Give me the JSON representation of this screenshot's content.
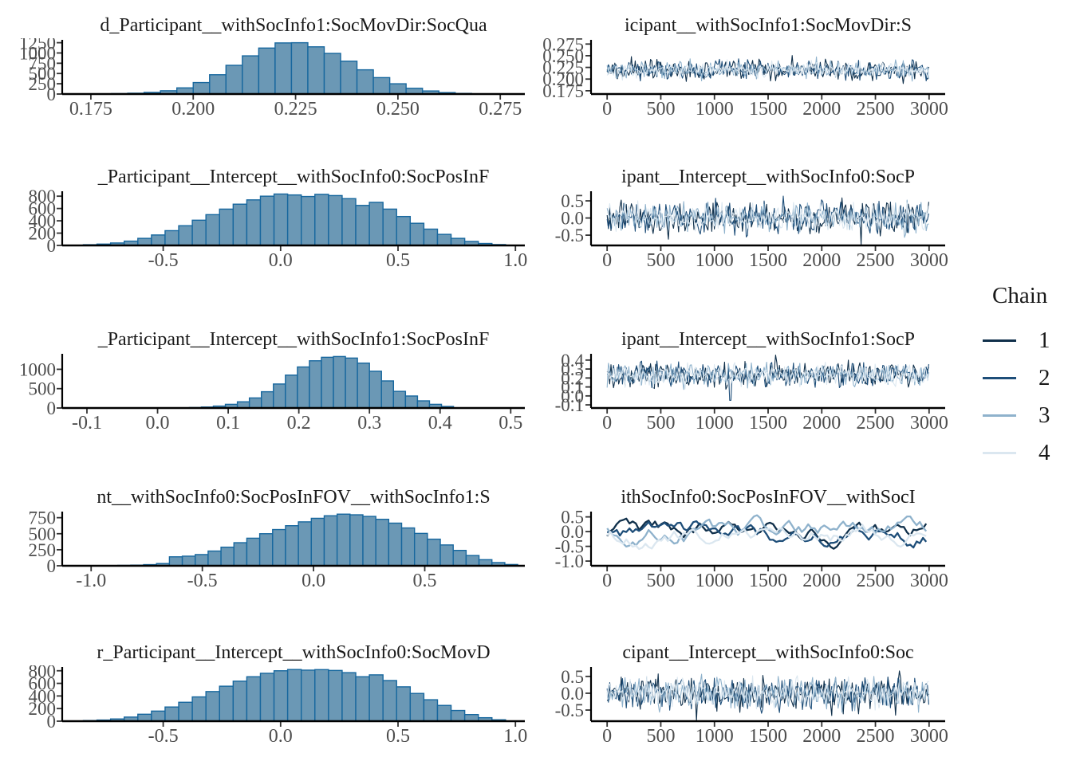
{
  "page": {
    "background": "#ffffff"
  },
  "style_colors": {
    "hist_fill": "#6b98b5",
    "hist_stroke": "#17679e",
    "axis": "#000000",
    "tick": "#333333",
    "tick_label": "#4d4d4d",
    "title": "#1a1a1a"
  },
  "legend": {
    "title": "Chain",
    "entries": [
      {
        "label": "1",
        "color": "#10304b"
      },
      {
        "label": "2",
        "color": "#1e4e79"
      },
      {
        "label": "3",
        "color": "#8fb2cc"
      },
      {
        "label": "4",
        "color": "#dbe7f0"
      }
    ]
  },
  "chart_data": {
    "type": "mcmc-diagnostics",
    "description": "Posterior histograms (left) and 4-chain trace plots (right) for 5 parameters; 3000 iterations per chain",
    "iterations": 3000,
    "plots": [
      {
        "hist": {
          "type": "bar",
          "title": "d_Participant__withSocInfo1:SocMovDir:SocQua",
          "x_start": 0.18,
          "bin_width": 0.004,
          "heights": [
            10,
            20,
            40,
            80,
            150,
            280,
            470,
            700,
            930,
            1120,
            1245,
            1250,
            1150,
            990,
            800,
            590,
            400,
            250,
            140,
            75,
            35,
            15
          ],
          "xlim": [
            0.168,
            0.281
          ],
          "ylim": [
            0,
            1320
          ],
          "x_ticks": {
            "values": [
              0.175,
              0.2,
              0.225,
              0.25,
              0.275
            ],
            "labels": [
              "0.175",
              "0.200",
              "0.225",
              "0.250",
              "0.275"
            ]
          },
          "y_ticks": {
            "values": [
              0,
              250,
              500,
              750,
              1000,
              1250
            ],
            "labels": [
              "0",
              "250",
              "500",
              "750",
              "1000",
              "1250"
            ]
          }
        },
        "trace": {
          "type": "line",
          "title": "icipant__withSocInfo1:SocMovDir:S",
          "band_mean": 0.2195,
          "band_half": 0.0235,
          "style": "fast",
          "seed": 11,
          "xlim": [
            -150,
            3150
          ],
          "ylim": [
            0.168,
            0.284
          ],
          "x_ticks": {
            "values": [
              0,
              500,
              1000,
              1500,
              2000,
              2500,
              3000
            ],
            "labels": [
              "0",
              "500",
              "1000",
              "1500",
              "2000",
              "2500",
              "3000"
            ]
          },
          "y_ticks": {
            "values": [
              0.175,
              0.2,
              0.225,
              0.25,
              0.275
            ],
            "labels": [
              "0.175",
              "0.200",
              "0.225",
              "0.250",
              "0.275"
            ]
          }
        }
      },
      {
        "hist": {
          "type": "bar",
          "title": "_Participant__Intercept__withSocInfo0:SocPosInF",
          "x_start": -0.84,
          "bin_width": 0.058,
          "heights": [
            12,
            22,
            40,
            70,
            115,
            170,
            240,
            320,
            410,
            500,
            590,
            670,
            740,
            800,
            835,
            820,
            795,
            830,
            810,
            760,
            650,
            700,
            590,
            470,
            360,
            265,
            180,
            115,
            65,
            32,
            14
          ],
          "xlim": [
            -0.93,
            1.04
          ],
          "ylim": [
            0,
            880
          ],
          "x_ticks": {
            "values": [
              -0.5,
              0,
              0.5,
              1.0
            ],
            "labels": [
              "-0.5",
              "0.0",
              "0.5",
              "1.0"
            ]
          },
          "y_ticks": {
            "values": [
              0,
              200,
              400,
              600,
              800
            ],
            "labels": [
              "0",
              "200",
              "400",
              "600",
              "800"
            ]
          }
        },
        "trace": {
          "type": "line",
          "title": "ipant__Intercept__withSocInfo0:SocP",
          "band_mean": 0.0,
          "band_half": 0.55,
          "style": "fast",
          "seed": 22,
          "xlim": [
            -150,
            3150
          ],
          "ylim": [
            -0.8,
            0.78
          ],
          "x_ticks": {
            "values": [
              0,
              500,
              1000,
              1500,
              2000,
              2500,
              3000
            ],
            "labels": [
              "0",
              "500",
              "1000",
              "1500",
              "2000",
              "2500",
              "3000"
            ]
          },
          "y_ticks": {
            "values": [
              -0.5,
              0,
              0.5
            ],
            "labels": [
              "-0.5",
              "0.0",
              "0.5"
            ]
          }
        }
      },
      {
        "hist": {
          "type": "bar",
          "title": "_Participant__Intercept__withSocInfo1:SocPosInF",
          "x_start": 0.045,
          "bin_width": 0.017,
          "heights": [
            12,
            25,
            50,
            95,
            160,
            260,
            420,
            620,
            850,
            1060,
            1220,
            1310,
            1330,
            1290,
            1160,
            950,
            700,
            430,
            310,
            185,
            95,
            40
          ],
          "xlim": [
            -0.135,
            0.52
          ],
          "ylim": [
            0,
            1400
          ],
          "x_ticks": {
            "values": [
              -0.1,
              0,
              0.1,
              0.2,
              0.3,
              0.4,
              0.5
            ],
            "labels": [
              "-0.1",
              "0.0",
              "0.1",
              "0.2",
              "0.3",
              "0.4",
              "0.5"
            ]
          },
          "y_ticks": {
            "values": [
              0,
              500,
              1000
            ],
            "labels": [
              "0",
              "500",
              "1000"
            ]
          }
        },
        "trace": {
          "type": "line",
          "title": "ipant__Intercept__withSocInfo1:SocP",
          "band_mean": 0.235,
          "band_half": 0.155,
          "style": "fast",
          "seed": 33,
          "spike": {
            "chain": 2,
            "iter": 1150,
            "value": -0.05
          },
          "xlim": [
            -150,
            3150
          ],
          "ylim": [
            -0.135,
            0.47
          ],
          "x_ticks": {
            "values": [
              0,
              500,
              1000,
              1500,
              2000,
              2500,
              3000
            ],
            "labels": [
              "0",
              "500",
              "1000",
              "1500",
              "2000",
              "2500",
              "3000"
            ]
          },
          "y_ticks": {
            "values": [
              -0.1,
              0,
              0.1,
              0.2,
              0.3,
              0.4
            ],
            "labels": [
              "-0.1",
              "0.0",
              "0.1",
              "0.2",
              "0.3",
              "0.4"
            ]
          }
        }
      },
      {
        "hist": {
          "type": "bar",
          "title": "nt__withSocInfo0:SocPosInFOV__withSocInfo1:S",
          "x_start": -0.88,
          "bin_width": 0.058,
          "heights": [
            6,
            10,
            18,
            35,
            140,
            150,
            175,
            230,
            290,
            360,
            430,
            500,
            565,
            625,
            685,
            740,
            780,
            805,
            795,
            770,
            725,
            665,
            590,
            505,
            415,
            325,
            240,
            160,
            95,
            50,
            20
          ],
          "xlim": [
            -1.13,
            0.95
          ],
          "ylim": [
            0,
            845
          ],
          "x_ticks": {
            "values": [
              -1.0,
              -0.5,
              0,
              0.5
            ],
            "labels": [
              "-1.0",
              "-0.5",
              "0.0",
              "0.5"
            ]
          },
          "y_ticks": {
            "values": [
              0,
              250,
              500,
              750
            ],
            "labels": [
              "0",
              "250",
              "500",
              "750"
            ]
          }
        },
        "trace": {
          "type": "line",
          "title": "ithSocInfo0:SocPosInFOV__withSocI",
          "band_mean": -0.07,
          "band_half": 0.5,
          "style": "slow",
          "seed": 44,
          "xlim": [
            -150,
            3150
          ],
          "ylim": [
            -1.16,
            0.68
          ],
          "x_ticks": {
            "values": [
              0,
              500,
              1000,
              1500,
              2000,
              2500,
              3000
            ],
            "labels": [
              "0",
              "500",
              "1000",
              "1500",
              "2000",
              "2500",
              "3000"
            ]
          },
          "y_ticks": {
            "values": [
              -1.0,
              -0.5,
              0,
              0.5
            ],
            "labels": [
              "-1.0",
              "-0.5",
              "0.0",
              "0.5"
            ]
          }
        }
      },
      {
        "hist": {
          "type": "bar",
          "title": "r_Participant__Intercept__withSocInfo0:SocMovD",
          "x_start": -0.84,
          "bin_width": 0.058,
          "heights": [
            10,
            18,
            35,
            65,
            110,
            160,
            225,
            300,
            385,
            470,
            555,
            635,
            705,
            760,
            800,
            820,
            810,
            818,
            805,
            770,
            705,
            735,
            645,
            545,
            440,
            340,
            250,
            170,
            105,
            55,
            22
          ],
          "xlim": [
            -0.93,
            1.04
          ],
          "ylim": [
            0,
            860
          ],
          "x_ticks": {
            "values": [
              -0.5,
              0,
              0.5,
              1.0
            ],
            "labels": [
              "-0.5",
              "0.0",
              "0.5",
              "1.0"
            ]
          },
          "y_ticks": {
            "values": [
              0,
              200,
              400,
              600,
              800
            ],
            "labels": [
              "0",
              "200",
              "400",
              "600",
              "800"
            ]
          }
        },
        "trace": {
          "type": "line",
          "title": "cipant__Intercept__withSocInfo0:Soc",
          "band_mean": 0.0,
          "band_half": 0.57,
          "style": "fast",
          "seed": 55,
          "xlim": [
            -150,
            3150
          ],
          "ylim": [
            -0.83,
            0.78
          ],
          "x_ticks": {
            "values": [
              0,
              500,
              1000,
              1500,
              2000,
              2500,
              3000
            ],
            "labels": [
              "0",
              "500",
              "1000",
              "1500",
              "2000",
              "2500",
              "3000"
            ]
          },
          "y_ticks": {
            "values": [
              -0.5,
              0,
              0.5
            ],
            "labels": [
              "-0.5",
              "0.0",
              "0.5"
            ]
          }
        }
      }
    ]
  }
}
